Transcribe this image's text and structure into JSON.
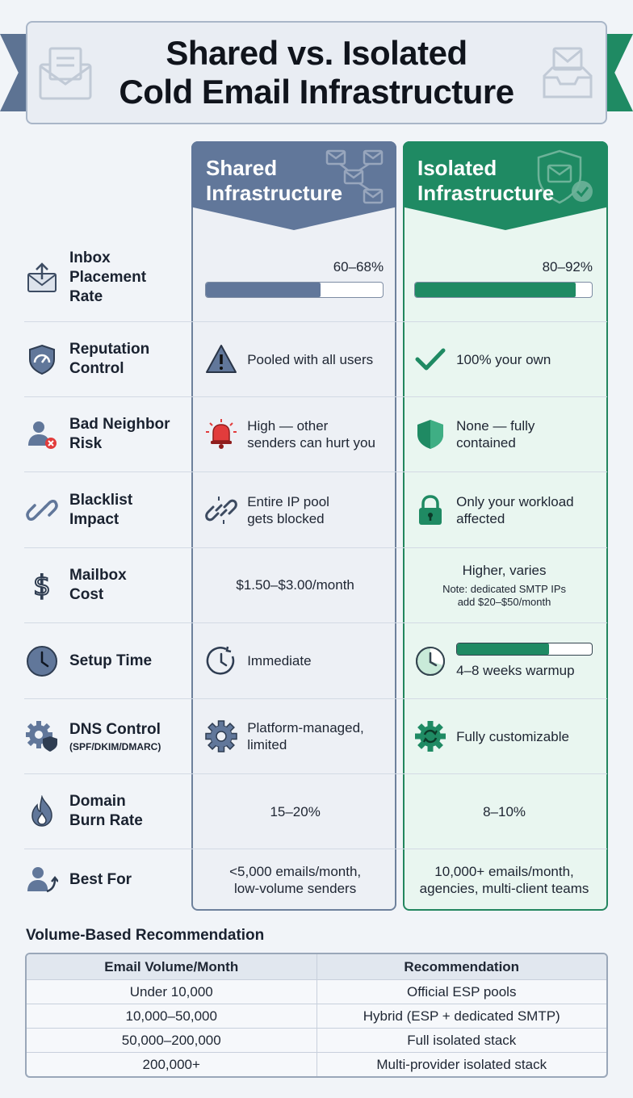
{
  "title": {
    "line1": "Shared vs. Isolated",
    "line2": "Cold Email Infrastructure"
  },
  "columns": {
    "shared": {
      "line1": "Shared",
      "line2": "Infrastructure"
    },
    "isolated": {
      "line1": "Isolated",
      "line2": "Infrastructure"
    }
  },
  "colors": {
    "shared_accent": "#61779a",
    "isolated_accent": "#1f8a63",
    "warning_red": "#e23c3c"
  },
  "rows": {
    "inbox": {
      "label": [
        "Inbox",
        "Placement",
        "Rate"
      ],
      "shared_value": "60–68%",
      "shared_fill": 0.65,
      "isolated_value": "80–92%",
      "isolated_fill": 0.91
    },
    "reputation": {
      "label": [
        "Reputation",
        "Control"
      ],
      "shared": "Pooled with all users",
      "isolated": "100% your own"
    },
    "neighbor": {
      "label": [
        "Bad Neighbor",
        "Risk"
      ],
      "shared": [
        "High — other",
        "senders can hurt you"
      ],
      "isolated": [
        "None — fully",
        "contained"
      ]
    },
    "blacklist": {
      "label": [
        "Blacklist",
        "Impact"
      ],
      "shared": [
        "Entire IP pool",
        "gets blocked"
      ],
      "isolated": [
        "Only your workload",
        "affected"
      ]
    },
    "cost": {
      "label": [
        "Mailbox",
        "Cost"
      ],
      "shared": "$1.50–$3.00/month",
      "isolated_main": "Higher, varies",
      "isolated_note": [
        "Note: dedicated SMTP IPs",
        "add $20–$50/month"
      ]
    },
    "setup": {
      "label": [
        "Setup Time"
      ],
      "shared": "Immediate",
      "isolated": "4–8 weeks warmup",
      "isolated_fill": 0.68
    },
    "dns": {
      "label": [
        "DNS Control"
      ],
      "sublabel": "(SPF/DKIM/DMARC)",
      "shared": [
        "Platform-managed,",
        "limited"
      ],
      "isolated": "Fully customizable"
    },
    "burn": {
      "label": [
        "Domain",
        "Burn Rate"
      ],
      "shared": "15–20%",
      "isolated": "8–10%"
    },
    "best": {
      "label": [
        "Best For"
      ],
      "shared": [
        "<5,000 emails/month,",
        "low-volume senders"
      ],
      "isolated": [
        "10,000+ emails/month,",
        "agencies, multi-client teams"
      ]
    }
  },
  "icons": [
    "envelope-upload-icon",
    "shield-gauge-icon",
    "user-blocked-icon",
    "broken-link-icon",
    "dollar-icon",
    "clock-icon",
    "gear-shield-icon",
    "flame-icon",
    "user-growth-icon",
    "warning-icon",
    "check-icon",
    "alarm-bell-icon",
    "shield-icon",
    "lock-icon",
    "timer-icon",
    "gear-icon",
    "gear-refresh-icon"
  ],
  "volume": {
    "title": "Volume-Based Recommendation",
    "headers": [
      "Email Volume/Month",
      "Recommendation"
    ],
    "rows": [
      [
        "Under 10,000",
        "Official ESP pools"
      ],
      [
        "10,000–50,000",
        "Hybrid (ESP + dedicated SMTP)"
      ],
      [
        "50,000–200,000",
        "Full isolated stack"
      ],
      [
        "200,000+",
        "Multi-provider isolated stack"
      ]
    ]
  }
}
